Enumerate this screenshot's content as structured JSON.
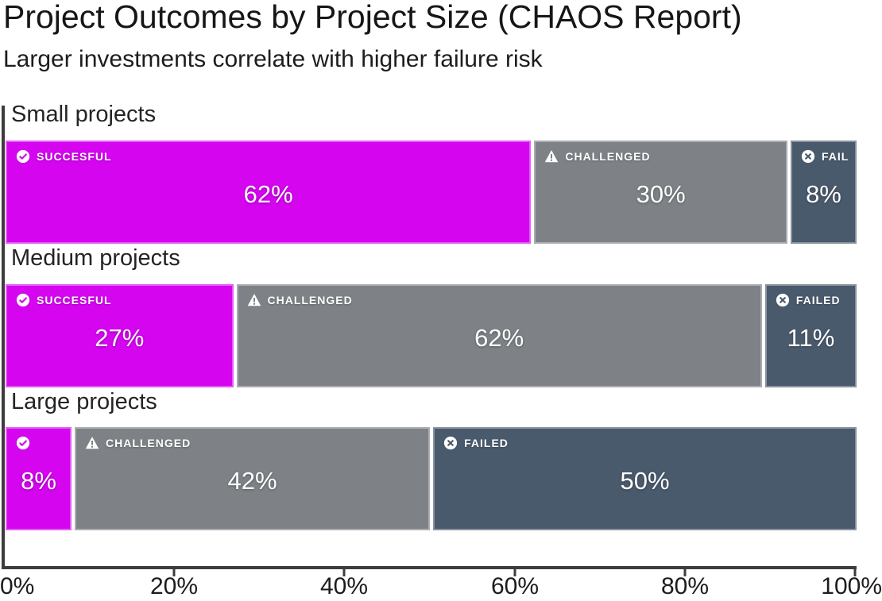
{
  "header": {
    "title": "Project Outcomes by Project Size (CHAOS Report)",
    "subtitle": "Larger investments correlate with higher failure risk"
  },
  "colors": {
    "successful": "#D505F0",
    "challenged": "#7E8286",
    "failed": "#4A5A6D",
    "axis": "#3D3D3D",
    "text": "#161616",
    "segment_text": "#FFFFFF"
  },
  "chart_data": {
    "type": "bar",
    "orientation": "horizontal-stacked",
    "title": "Project Outcomes by Project Size (CHAOS Report)",
    "subtitle": "Larger investments correlate with higher failure risk",
    "categories": [
      "Small projects",
      "Medium projects",
      "Large projects"
    ],
    "series": [
      {
        "name": "Successful",
        "values": [
          62,
          27,
          8
        ],
        "color": "#D505F0"
      },
      {
        "name": "Challenged",
        "values": [
          30,
          62,
          42
        ],
        "color": "#7E8286"
      },
      {
        "name": "Failed",
        "values": [
          8,
          11,
          50
        ],
        "color": "#4A5A6D"
      }
    ],
    "xlabel": "",
    "ylabel": "",
    "xlim": [
      0,
      100
    ],
    "x_tick_labels": [
      "0%",
      "20%",
      "40%",
      "60%",
      "80%",
      "100%"
    ],
    "grid": false,
    "legend_position": "none",
    "value_labels_shown": true
  },
  "rows": [
    {
      "label": "Small projects",
      "segments": [
        {
          "kind": "successful",
          "icon": "check-circle-icon",
          "label": "SUCCESFUL",
          "value": "62%",
          "pct": 62
        },
        {
          "kind": "challenged",
          "icon": "warning-triangle-icon",
          "label": "CHALLENGED",
          "value": "30%",
          "pct": 30
        },
        {
          "kind": "failed",
          "icon": "x-circle-icon",
          "label": "FAIL",
          "value": "8%",
          "pct": 8
        }
      ]
    },
    {
      "label": "Medium projects",
      "segments": [
        {
          "kind": "successful",
          "icon": "check-circle-icon",
          "label": "SUCCESFUL",
          "value": "27%",
          "pct": 27
        },
        {
          "kind": "challenged",
          "icon": "warning-triangle-icon",
          "label": "CHALLENGED",
          "value": "62%",
          "pct": 62
        },
        {
          "kind": "failed",
          "icon": "x-circle-icon",
          "label": "FAILED",
          "value": "11%",
          "pct": 11
        }
      ]
    },
    {
      "label": "Large projects",
      "segments": [
        {
          "kind": "successful",
          "icon": "check-circle-icon",
          "label": "",
          "value": "8%",
          "pct": 8
        },
        {
          "kind": "challenged",
          "icon": "warning-triangle-icon",
          "label": "CHALLENGED",
          "value": "42%",
          "pct": 42
        },
        {
          "kind": "failed",
          "icon": "x-circle-icon",
          "label": "FAILED",
          "value": "50%",
          "pct": 50
        }
      ]
    }
  ],
  "axis": {
    "ticks": [
      {
        "pct": 0,
        "label": "0%"
      },
      {
        "pct": 20,
        "label": "20%"
      },
      {
        "pct": 40,
        "label": "40%"
      },
      {
        "pct": 60,
        "label": "60%"
      },
      {
        "pct": 80,
        "label": "80%"
      },
      {
        "pct": 100,
        "label": "100%"
      }
    ]
  }
}
